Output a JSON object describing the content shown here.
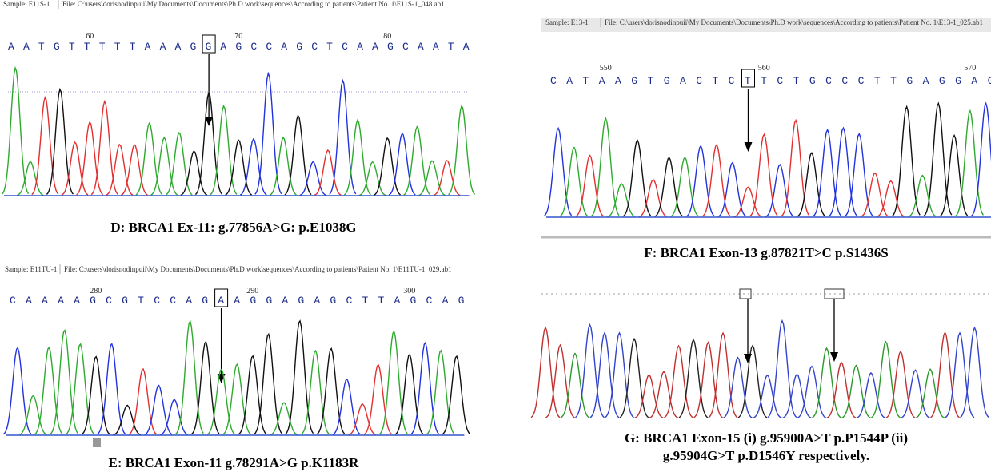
{
  "panels": [
    {
      "sample": "Sample: E11S-1",
      "file": "File: C:\\users\\dorisnodinpuii\\My Documents\\Documents\\Ph.D work\\sequences\\According to patients\\Patient No. 1\\E11S-1_048.ab1",
      "bases": "AATGTTTTTAAAGGAGCCAGCTCAAGCAATA",
      "positions": [
        60,
        70,
        80
      ],
      "caption": "D: BRCA1 Ex-11: g.77856A>G: p.E1038G"
    },
    {
      "sample": "Sample: E11TU-1",
      "file": "File: C:\\users\\dorisnodinpuii\\My Documents\\Documents\\Ph.D work\\sequences\\According to patients\\Patient No. 1\\E11TU-1_029.ab1",
      "bases": "CAAAAGCGTCCAGAAGGAGAGCTTAGCAG",
      "positions": [
        280,
        290,
        300
      ],
      "caption": "E: BRCA1 Exon-11 g.78291A>G p.K1183R"
    },
    {
      "sample": "Sample: E13-1",
      "file": "File: C:\\users\\dorisnodinpuii\\My Documents\\Documents\\Ph.D work\\sequences\\According to patients\\Patient No. 1\\E13-1_025.ab1",
      "bases": "CATAAGTGACTCTTCTGCCCTTGAGGAC",
      "positions": [
        550,
        560,
        570
      ],
      "caption": "F: BRCA1 Exon-13 g.87821T>C  p.S1436S"
    },
    {
      "caption_lines": [
        "G: BRCA1 Exon-15 (i) g.95900A>T p.P1544P (ii)",
        "g.95904G>T p.D1546Y respectively."
      ]
    }
  ]
}
